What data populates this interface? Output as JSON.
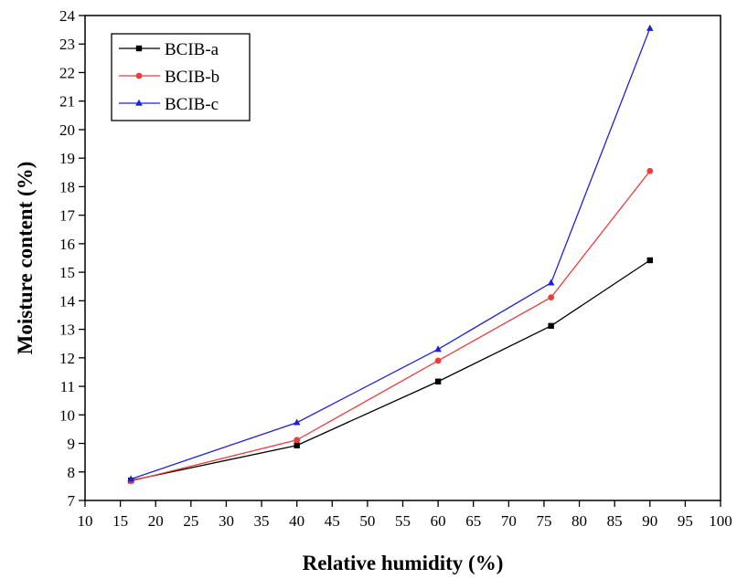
{
  "chart_data": {
    "type": "line",
    "title": "",
    "xlabel": "Relative humidity (%)",
    "ylabel": "Moisture content (%)",
    "xlim": [
      10,
      100
    ],
    "ylim": [
      7,
      24
    ],
    "xticks": [
      10,
      15,
      20,
      25,
      30,
      35,
      40,
      45,
      50,
      55,
      60,
      65,
      70,
      75,
      80,
      85,
      90,
      95,
      100
    ],
    "yticks": [
      7,
      8,
      9,
      10,
      11,
      12,
      13,
      14,
      15,
      16,
      17,
      18,
      19,
      20,
      21,
      22,
      23,
      24
    ],
    "x": [
      16.5,
      40,
      60,
      76,
      90
    ],
    "grid": false,
    "legend_position": "top-left",
    "series": [
      {
        "name": "BCIB-a",
        "color": "#000000",
        "marker": "square",
        "values": [
          7.7,
          8.93,
          11.17,
          13.12,
          15.42
        ]
      },
      {
        "name": "BCIB-b",
        "color": "#ee3b3b",
        "marker": "circle",
        "values": [
          7.68,
          9.12,
          11.9,
          14.12,
          18.55
        ]
      },
      {
        "name": "BCIB-c",
        "color": "#1f1fe0",
        "marker": "triangle",
        "values": [
          7.75,
          9.73,
          12.3,
          14.63,
          23.55
        ]
      }
    ]
  }
}
